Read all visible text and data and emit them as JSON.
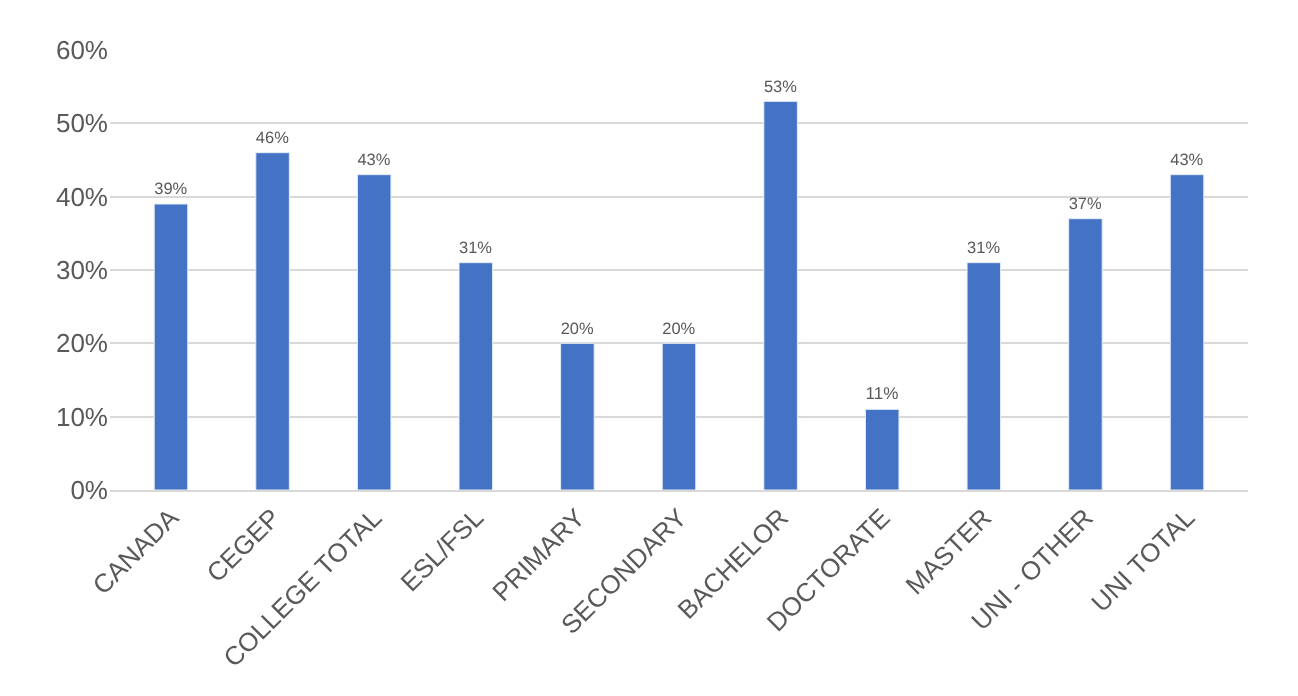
{
  "chart_data": {
    "type": "bar",
    "categories": [
      "CANADA",
      "CEGEP",
      "COLLEGE TOTAL",
      "ESL/FSL",
      "PRIMARY",
      "SECONDARY",
      "BACHELOR",
      "DOCTORATE",
      "MASTER",
      "UNI - OTHER",
      "UNI TOTAL"
    ],
    "values": [
      39,
      46,
      43,
      31,
      20,
      20,
      53,
      11,
      31,
      37,
      43
    ],
    "value_labels": [
      "39%",
      "46%",
      "43%",
      "31%",
      "20%",
      "20%",
      "53%",
      "11%",
      "31%",
      "37%",
      "43%"
    ],
    "color": "#4472c4",
    "ylim": [
      0,
      60
    ],
    "yticks": [
      {
        "value": 0,
        "label": "0%"
      },
      {
        "value": 10,
        "label": "10%"
      },
      {
        "value": 20,
        "label": "20%"
      },
      {
        "value": 30,
        "label": "30%"
      },
      {
        "value": 40,
        "label": "40%"
      },
      {
        "value": 50,
        "label": "50%"
      },
      {
        "value": 60,
        "label": "60%"
      }
    ],
    "grid": "y"
  }
}
